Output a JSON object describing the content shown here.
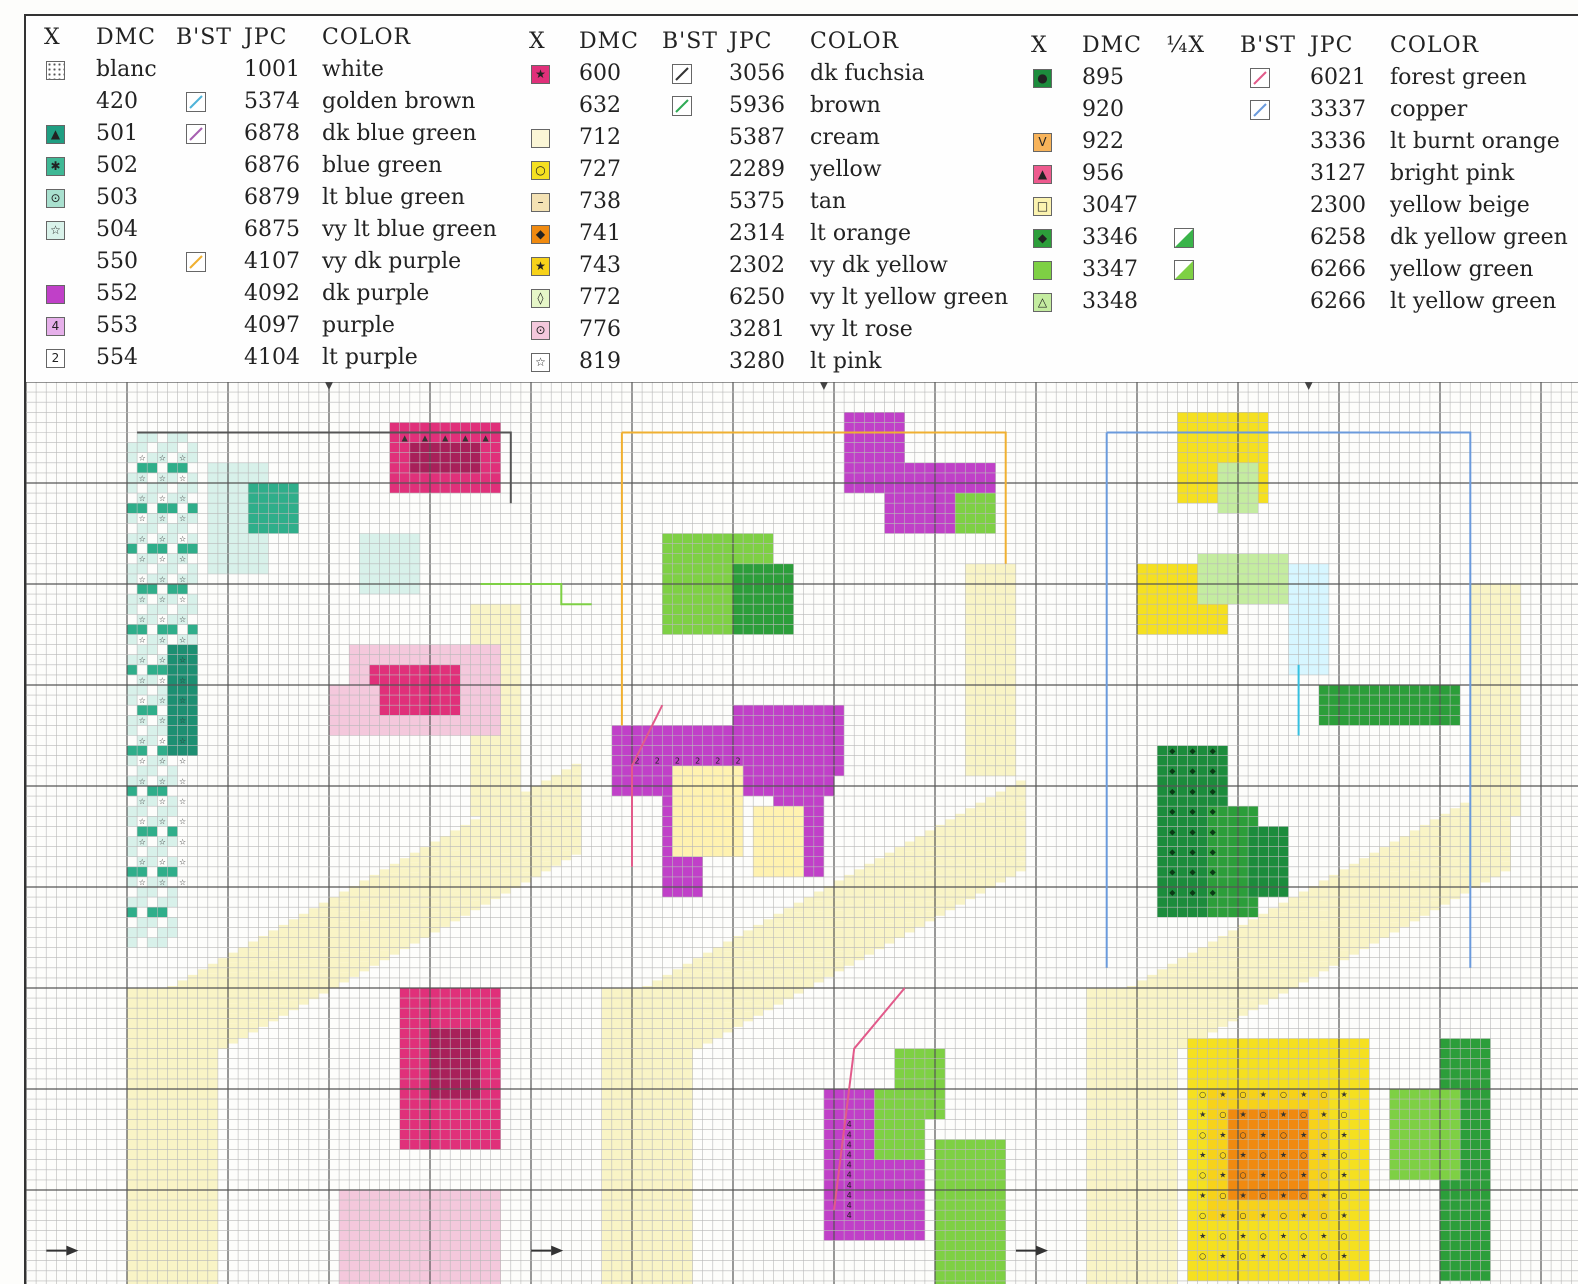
{
  "legend": {
    "headers": {
      "x": "X",
      "dmc": "DMC",
      "bst": "B'ST",
      "jpc": "JPC",
      "color": "COLOR",
      "quarter": "¼X"
    },
    "columns": [
      {
        "rows": [
          {
            "dmc": "blanc",
            "jpc": "1001",
            "color": "white",
            "sym": "dots",
            "fill": "#ffffff"
          },
          {
            "dmc": "420",
            "jpc": "5374",
            "color": "golden brown",
            "bst": "#4fb3d9"
          },
          {
            "dmc": "501",
            "jpc": "6878",
            "color": "dk blue green",
            "sym": "▲",
            "fill": "#1f9e82",
            "bst": "#a75fb0"
          },
          {
            "dmc": "502",
            "jpc": "6876",
            "color": "blue green",
            "sym": "✱",
            "fill": "#3fb895"
          },
          {
            "dmc": "503",
            "jpc": "6879",
            "color": "lt blue green",
            "sym": "⊙",
            "fill": "#a9e0cf"
          },
          {
            "dmc": "504",
            "jpc": "6875",
            "color": "vy lt blue green",
            "sym": "☆",
            "fill": "#d9f2ea"
          },
          {
            "dmc": "550",
            "jpc": "4107",
            "color": "vy dk purple",
            "bst": "#f0b030"
          },
          {
            "dmc": "552",
            "jpc": "4092",
            "color": "dk purple",
            "sym": "",
            "fill": "#c040c8"
          },
          {
            "dmc": "553",
            "jpc": "4097",
            "color": "purple",
            "sym": "4",
            "fill": "#e6b0ea"
          },
          {
            "dmc": "554",
            "jpc": "4104",
            "color": "lt purple",
            "sym": "2",
            "fill": "#ffffff"
          }
        ]
      },
      {
        "rows": [
          {
            "dmc": "600",
            "jpc": "3056",
            "color": "dk fuchsia",
            "sym": "★",
            "fill": "#e0307a",
            "bst": "#333333"
          },
          {
            "dmc": "632",
            "jpc": "5936",
            "color": "brown",
            "bst": "#2faa55"
          },
          {
            "dmc": "712",
            "jpc": "5387",
            "color": "cream",
            "sym": "",
            "fill": "#fbf6d6"
          },
          {
            "dmc": "727",
            "jpc": "2289",
            "color": "yellow",
            "sym": "○",
            "fill": "#f5e020"
          },
          {
            "dmc": "738",
            "jpc": "5375",
            "color": "tan",
            "sym": "–",
            "fill": "#f4e2b4"
          },
          {
            "dmc": "741",
            "jpc": "2314",
            "color": "lt orange",
            "sym": "◆",
            "fill": "#f08a10"
          },
          {
            "dmc": "743",
            "jpc": "2302",
            "color": "vy dk yellow",
            "sym": "★",
            "fill": "#f7d21a"
          },
          {
            "dmc": "772",
            "jpc": "6250",
            "color": "vy lt yellow green",
            "sym": "◊",
            "fill": "#e6f6c8"
          },
          {
            "dmc": "776",
            "jpc": "3281",
            "color": "vy lt rose",
            "sym": "⊙",
            "fill": "#f4c8dc"
          },
          {
            "dmc": "819",
            "jpc": "3280",
            "color": "lt pink",
            "sym": "☆",
            "fill": "#ffffff"
          }
        ]
      },
      {
        "rows": [
          {
            "dmc": "895",
            "jpc": "6021",
            "color": "forest green",
            "sym": "●",
            "fill": "#1c8c3c",
            "bst": "#e25a8a"
          },
          {
            "dmc": "920",
            "jpc": "3337",
            "color": "copper",
            "bst": "#6a9adc"
          },
          {
            "dmc": "922",
            "jpc": "3336",
            "color": "lt burnt orange",
            "sym": "V",
            "fill": "#f7b35a"
          },
          {
            "dmc": "956",
            "jpc": "3127",
            "color": "bright pink",
            "sym": "▲",
            "fill": "#ee5a8e"
          },
          {
            "dmc": "3047",
            "jpc": "2300",
            "color": "yellow beige",
            "sym": "□",
            "fill": "#fbf3b0"
          },
          {
            "dmc": "3346",
            "jpc": "6258",
            "color": "dk yellow green",
            "sym": "◆",
            "fill": "#2c9e3a",
            "quarter": "#3ab44a"
          },
          {
            "dmc": "3347",
            "jpc": "6266",
            "color": "yellow green",
            "sym": "",
            "fill": "#7ed044",
            "quarter": "#7ed044"
          },
          {
            "dmc": "3348",
            "jpc": "6266",
            "color": "lt yellow green",
            "sym": "△",
            "fill": "#c4eca0"
          }
        ]
      }
    ]
  }
}
